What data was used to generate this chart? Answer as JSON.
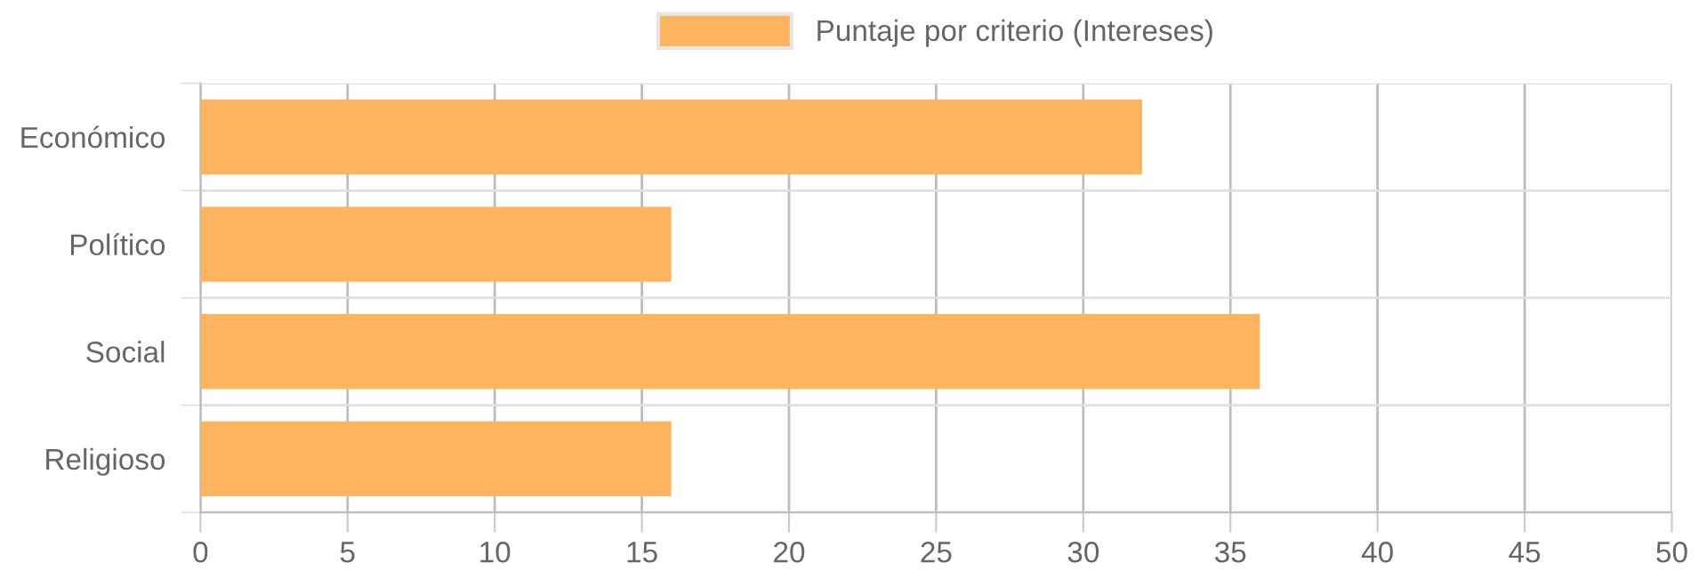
{
  "chart_data": {
    "type": "bar",
    "orientation": "horizontal",
    "categories": [
      "Económico",
      "Político",
      "Social",
      "Religioso"
    ],
    "series": [
      {
        "name": "Puntaje por criterio (Intereses)",
        "color": "#ffb55f",
        "values": [
          32,
          16,
          36,
          16
        ]
      }
    ],
    "xlim": [
      0,
      50
    ],
    "xticks": [
      0,
      5,
      10,
      15,
      20,
      25,
      30,
      35,
      40,
      45,
      50
    ],
    "grid": true,
    "legend": "top"
  }
}
